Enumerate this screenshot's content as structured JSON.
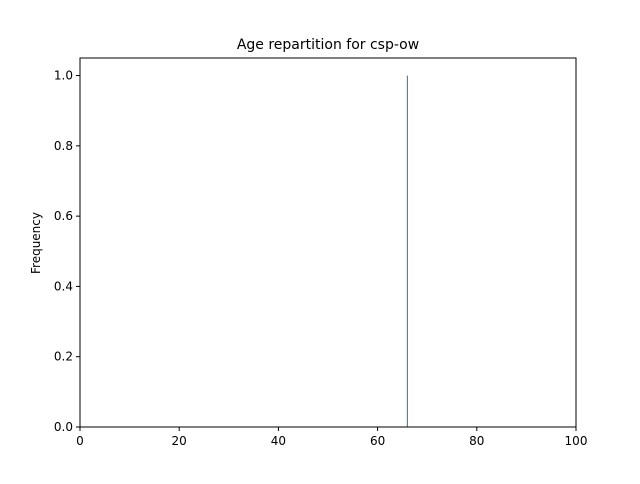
{
  "chart_data": {
    "type": "bar",
    "title": "Age repartition for csp-ow",
    "xlabel": "",
    "ylabel": "Frequency",
    "xlim": [
      0,
      100
    ],
    "ylim": [
      0,
      1.05
    ],
    "xticks": [
      0,
      20,
      40,
      60,
      80,
      100
    ],
    "yticks": [
      0.0,
      0.2,
      0.4,
      0.6,
      0.8,
      1.0
    ],
    "ytick_labels": [
      "0.0",
      "0.2",
      "0.4",
      "0.6",
      "0.8",
      "1.0"
    ],
    "grid": false,
    "bars": [
      {
        "x_start": 65.9,
        "x_end": 66.1,
        "value": 1.0
      }
    ],
    "bar_color": "#1f77b4"
  }
}
